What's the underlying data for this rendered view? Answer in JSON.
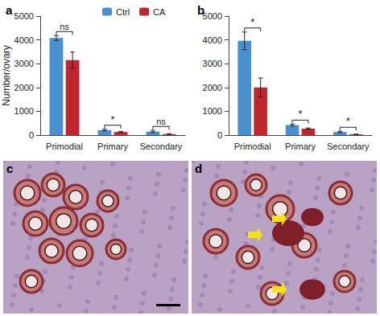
{
  "chart_data": [
    {
      "type": "bar",
      "title": "a",
      "categories": [
        "Primodial",
        "Primary",
        "Secondary"
      ],
      "series": [
        {
          "name": "Ctrl",
          "color": "#4a8fcf",
          "values": [
            4080,
            210,
            150
          ],
          "errors": [
            100,
            35,
            45
          ]
        },
        {
          "name": "CA",
          "color": "#c0262d",
          "values": [
            3150,
            130,
            40
          ],
          "errors": [
            340,
            25,
            20
          ]
        }
      ],
      "annotations": [
        "ns",
        "*",
        "ns"
      ],
      "y_label": "Number/ovary",
      "ylim": [
        0,
        5000
      ],
      "yticks": [
        0,
        1000,
        2000,
        3000,
        4000,
        5000
      ],
      "grid": false,
      "legend": "top"
    },
    {
      "type": "bar",
      "title": "b",
      "categories": [
        "Primodial",
        "Primary",
        "Secondary"
      ],
      "series": [
        {
          "name": "Ctrl",
          "color": "#4a8fcf",
          "values": [
            3960,
            420,
            130
          ],
          "errors": [
            370,
            40,
            30
          ]
        },
        {
          "name": "CA",
          "color": "#c0262d",
          "values": [
            2000,
            270,
            30
          ],
          "errors": [
            400,
            30,
            10
          ]
        }
      ],
      "annotations": [
        "*",
        "*",
        "*"
      ],
      "ylim": [
        0,
        5000
      ],
      "yticks": [
        0,
        1000,
        2000,
        3000,
        4000,
        5000
      ],
      "grid": false
    }
  ],
  "images": [
    {
      "label": "c"
    },
    {
      "label": "d"
    }
  ]
}
